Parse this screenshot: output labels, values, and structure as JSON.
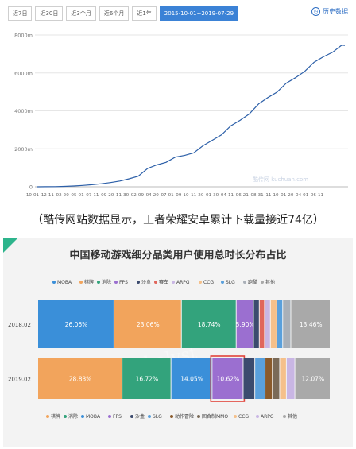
{
  "toolbar": {
    "tabs": [
      "近7日",
      "近30日",
      "近3个月",
      "近6个月",
      "近1年",
      "2015-10-01~2019-07-29"
    ],
    "history_label": "历史数据"
  },
  "watermark": "酷传网 kuchuan.com",
  "caption": "（酷传网站数据显示，王者荣耀安卓累计下载量接近74亿）",
  "colors": {
    "line": "#2c5fa8",
    "tab_active": "#3b82d6",
    "accent_corner": "#2db48c",
    "segments": {
      "MOBA": "#3a8fd9",
      "棋牌": "#f2a45c",
      "消除": "#33a37c",
      "FPS": "#9b6fd0",
      "沙盒": "#3c4b6e",
      "赛车": "#e0665c",
      "ARPG": "#c9b6e4",
      "CCG": "#f5c08a",
      "SLG": "#5aa0dc",
      "跑酷": "#aab0b8",
      "其他": "#a9a9a9",
      "动作冒险": "#8a5a2b",
      "回合制MMO": "#7a6a58"
    }
  },
  "chart_data": [
    {
      "type": "line",
      "x_ticks": [
        "10-01",
        "12-11",
        "02-20",
        "05-01",
        "07-11",
        "09-20",
        "11-30",
        "02-09",
        "04-20",
        "07-01",
        "09-10",
        "11-20",
        "01-30",
        "04-11",
        "06-21",
        "08-31",
        "11-10",
        "01-20",
        "04-01",
        "06-11"
      ],
      "y_ticks": [
        "0",
        "2000m",
        "4000m",
        "6000m",
        "8000m"
      ],
      "ylim": [
        0,
        8000
      ],
      "x": [
        0,
        0.03,
        0.06,
        0.09,
        0.12,
        0.15,
        0.18,
        0.21,
        0.24,
        0.27,
        0.3,
        0.33,
        0.36,
        0.39,
        0.42,
        0.45,
        0.48,
        0.51,
        0.54,
        0.57,
        0.6,
        0.63,
        0.66,
        0.69,
        0.72,
        0.75,
        0.78,
        0.81,
        0.84,
        0.87,
        0.9,
        0.93,
        0.96,
        0.99,
        1.0
      ],
      "y": [
        0,
        5,
        10,
        20,
        40,
        70,
        110,
        160,
        220,
        300,
        420,
        620,
        900,
        1150,
        1350,
        1500,
        1650,
        1850,
        2100,
        2450,
        2800,
        3150,
        3500,
        3900,
        4300,
        4700,
        5050,
        5400,
        5750,
        6150,
        6500,
        6850,
        7150,
        7400,
        7450
      ],
      "grid": true
    },
    {
      "type": "bar",
      "orientation": "horizontal-stacked",
      "title": "中国移动游戏细分品类用户使用总时长分布占比",
      "top_legend": [
        "MOBA",
        "棋牌",
        "消除",
        "FPS",
        "沙盒",
        "赛车",
        "ARPG",
        "CCG",
        "SLG",
        "跑酷",
        "其他"
      ],
      "bottom_legend": [
        "棋牌",
        "消除",
        "MOBA",
        "FPS",
        "沙盒",
        "SLG",
        "动作冒险",
        "回合制MMO",
        "CCG",
        "ARPG",
        "其他"
      ],
      "categories": [
        "2018.02",
        "2019.02"
      ],
      "rows": [
        {
          "label": "2018.02",
          "segments": [
            {
              "name": "MOBA",
              "value": 26.06,
              "label": "26.06%"
            },
            {
              "name": "棋牌",
              "value": 23.06,
              "label": "23.06%"
            },
            {
              "name": "消除",
              "value": 18.74,
              "label": "18.74%"
            },
            {
              "name": "FPS",
              "value": 5.9,
              "label": "5.90%"
            },
            {
              "name": "沙盒",
              "value": 2.0,
              "label": ""
            },
            {
              "name": "赛车",
              "value": 1.8,
              "label": ""
            },
            {
              "name": "ARPG",
              "value": 2.0,
              "label": ""
            },
            {
              "name": "CCG",
              "value": 2.2,
              "label": ""
            },
            {
              "name": "SLG",
              "value": 2.0,
              "label": ""
            },
            {
              "name": "跑酷",
              "value": 2.78,
              "label": ""
            },
            {
              "name": "其他",
              "value": 13.46,
              "label": "13.46%"
            }
          ]
        },
        {
          "label": "2019.02",
          "segments": [
            {
              "name": "棋牌",
              "value": 28.83,
              "label": "28.83%"
            },
            {
              "name": "消除",
              "value": 16.72,
              "label": "16.72%"
            },
            {
              "name": "MOBA",
              "value": 14.05,
              "label": "14.05%"
            },
            {
              "name": "FPS",
              "value": 10.62,
              "label": "10.62%"
            },
            {
              "name": "沙盒",
              "value": 4.0,
              "label": ""
            },
            {
              "name": "SLG",
              "value": 3.5,
              "label": ""
            },
            {
              "name": "动作冒险",
              "value": 2.5,
              "label": ""
            },
            {
              "name": "回合制MMO",
              "value": 2.5,
              "label": ""
            },
            {
              "name": "CCG",
              "value": 2.3,
              "label": ""
            },
            {
              "name": "ARPG",
              "value": 2.9,
              "label": ""
            },
            {
              "name": "其他",
              "value": 12.07,
              "label": "12.07%"
            }
          ]
        }
      ],
      "highlight": {
        "row": "2019.02",
        "segment": "FPS"
      },
      "xlim": [
        0,
        100
      ]
    }
  ]
}
